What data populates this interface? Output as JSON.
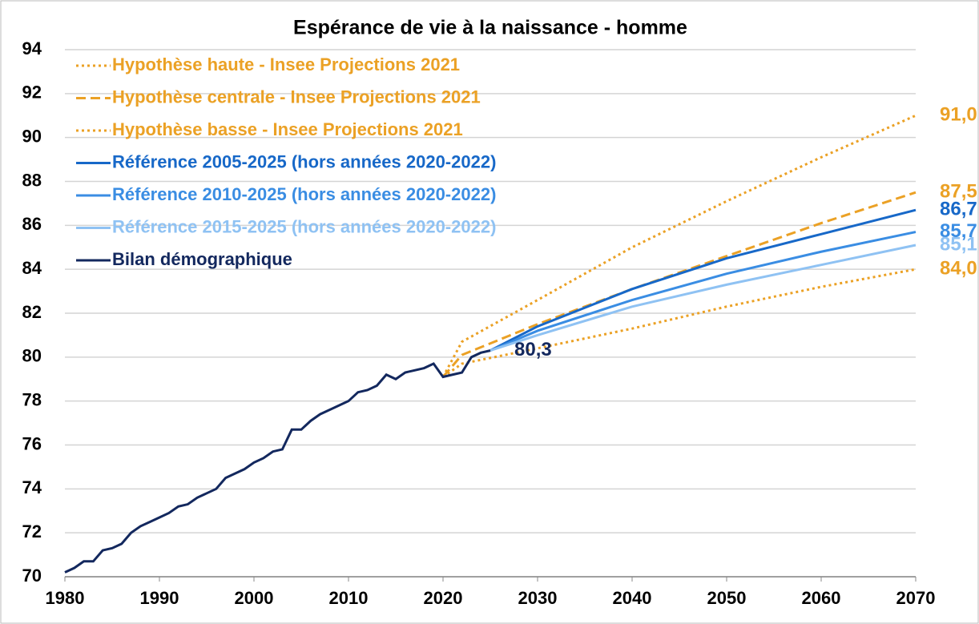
{
  "chart_data": {
    "type": "line",
    "title": "Espérance de vie à la naissance - homme",
    "xlim": [
      1980,
      2070
    ],
    "xticks": [
      1980,
      1990,
      2000,
      2010,
      2020,
      2030,
      2040,
      2050,
      2060,
      2070
    ],
    "ylim": [
      70,
      94
    ],
    "yticks": [
      70,
      72,
      74,
      76,
      78,
      80,
      82,
      84,
      86,
      88,
      90,
      92,
      94
    ],
    "grid": true,
    "legend": "top-left",
    "series": [
      {
        "name": "Hypothèse haute - Insee Projections 2021",
        "color": "#EBA125",
        "dash": "dotted",
        "x": [
          2020,
          2022,
          2030,
          2040,
          2050,
          2060,
          2070
        ],
        "values": [
          79.1,
          80.7,
          82.6,
          85.0,
          87.1,
          89.1,
          91.0
        ],
        "value_labels": [
          null,
          null,
          null,
          null,
          null,
          null,
          "91,0"
        ]
      },
      {
        "name": "Hypothèse centrale - Insee Projections 2021",
        "color": "#EBA125",
        "dash": "dashed",
        "x": [
          2020,
          2022,
          2030,
          2040,
          2050,
          2060,
          2070
        ],
        "values": [
          79.1,
          80.1,
          81.5,
          83.1,
          84.6,
          86.1,
          87.5
        ],
        "value_labels": [
          null,
          null,
          null,
          null,
          null,
          null,
          "87,5"
        ]
      },
      {
        "name": "Hypothèse basse - Insee Projections 2021",
        "color": "#EBA125",
        "dash": "dotted",
        "x": [
          2020,
          2022,
          2030,
          2040,
          2050,
          2060,
          2070
        ],
        "values": [
          79.1,
          79.7,
          80.4,
          81.3,
          82.3,
          83.2,
          84.0
        ],
        "value_labels": [
          null,
          null,
          null,
          null,
          null,
          null,
          "84,0"
        ]
      },
      {
        "name": "Référence 2005-2025 (hors années 2020-2022)",
        "color": "#1768C8",
        "dash": "solid",
        "x": [
          2025,
          2030,
          2040,
          2050,
          2060,
          2070
        ],
        "values": [
          80.3,
          81.4,
          83.1,
          84.5,
          85.6,
          86.7
        ],
        "value_labels": [
          null,
          null,
          null,
          null,
          null,
          "86,7"
        ]
      },
      {
        "name": "Référence 2010-2025 (hors années 2020-2022)",
        "color": "#3A8DE3",
        "dash": "solid",
        "x": [
          2025,
          2030,
          2040,
          2050,
          2060,
          2070
        ],
        "values": [
          80.3,
          81.2,
          82.6,
          83.8,
          84.8,
          85.7
        ],
        "value_labels": [
          null,
          null,
          null,
          null,
          null,
          "85,7"
        ]
      },
      {
        "name": "Référence 2015-2025 (hors années 2020-2022)",
        "color": "#8FC2F3",
        "dash": "solid",
        "x": [
          2025,
          2030,
          2040,
          2050,
          2060,
          2070
        ],
        "values": [
          80.3,
          81.0,
          82.3,
          83.3,
          84.2,
          85.1
        ],
        "value_labels": [
          null,
          null,
          null,
          null,
          null,
          "85,1"
        ]
      },
      {
        "name": "Bilan démographique",
        "color": "#13285E",
        "dash": "solid",
        "x": [
          1980,
          1981,
          1982,
          1983,
          1984,
          1985,
          1986,
          1987,
          1988,
          1989,
          1990,
          1991,
          1992,
          1993,
          1994,
          1995,
          1996,
          1997,
          1998,
          1999,
          2000,
          2001,
          2002,
          2003,
          2004,
          2005,
          2006,
          2007,
          2008,
          2009,
          2010,
          2011,
          2012,
          2013,
          2014,
          2015,
          2016,
          2017,
          2018,
          2019,
          2020,
          2021,
          2022,
          2023,
          2024,
          2025
        ],
        "values": [
          70.2,
          70.4,
          70.7,
          70.7,
          71.2,
          71.3,
          71.5,
          72.0,
          72.3,
          72.5,
          72.7,
          72.9,
          73.2,
          73.3,
          73.6,
          73.8,
          74.0,
          74.5,
          74.7,
          74.9,
          75.2,
          75.4,
          75.7,
          75.8,
          76.7,
          76.7,
          77.1,
          77.4,
          77.6,
          77.8,
          78.0,
          78.4,
          78.5,
          78.7,
          79.2,
          79.0,
          79.3,
          79.4,
          79.5,
          79.7,
          79.1,
          79.2,
          79.3,
          80.0,
          80.2,
          80.3
        ],
        "value_labels": [
          null,
          null,
          null,
          null,
          null,
          null,
          null,
          null,
          null,
          null,
          null,
          null,
          null,
          null,
          null,
          null,
          null,
          null,
          null,
          null,
          null,
          null,
          null,
          null,
          null,
          null,
          null,
          null,
          null,
          null,
          null,
          null,
          null,
          null,
          null,
          null,
          null,
          null,
          null,
          null,
          null,
          null,
          null,
          null,
          null,
          "80,3"
        ]
      }
    ]
  }
}
